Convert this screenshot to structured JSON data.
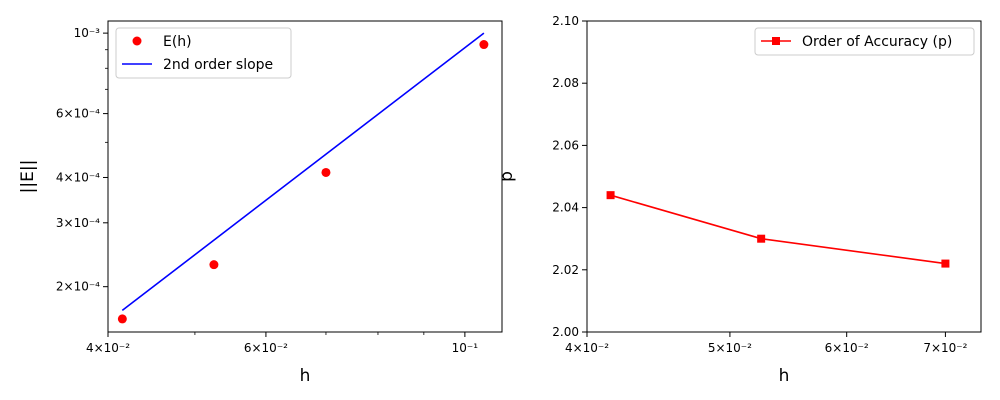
{
  "chart_data": [
    {
      "type": "scatter",
      "xscale": "log",
      "yscale": "log",
      "xlabel": "h",
      "ylabel": "||E||",
      "xlim": [
        0.04,
        0.11
      ],
      "ylim": [
        0.00015,
        0.00108
      ],
      "grid": false,
      "legend_position": "upper-left",
      "xtick_labels": [
        "4×10⁻²",
        "6×10⁻²",
        "10⁻¹"
      ],
      "xtick_values": [
        0.04,
        0.06,
        0.1
      ],
      "ytick_labels": [
        "2×10⁻⁴",
        "3×10⁻⁴",
        "4×10⁻⁴",
        "6×10⁻⁴",
        "10⁻³"
      ],
      "ytick_values": [
        0.0002,
        0.0003,
        0.0004,
        0.0006,
        0.001
      ],
      "series": [
        {
          "name": "E(h)",
          "marker": "circle",
          "color": "#ff0000",
          "line": false,
          "x": [
            0.0415,
            0.0525,
            0.07,
            0.105
          ],
          "y": [
            0.000163,
            0.00023,
            0.000413,
            0.00093
          ]
        },
        {
          "name": "2nd order slope",
          "marker": "none",
          "color": "#0000ff",
          "line": true,
          "x": [
            0.0415,
            0.105
          ],
          "y": [
            0.000172,
            0.001
          ]
        }
      ]
    },
    {
      "type": "line",
      "xscale": "log",
      "yscale": "linear",
      "xlabel": "h",
      "ylabel": "p",
      "xlim": [
        0.04,
        0.074
      ],
      "ylim": [
        2.0,
        2.1
      ],
      "grid": false,
      "legend_position": "upper-right",
      "xtick_labels": [
        "4×10⁻²",
        "5×10⁻²",
        "6×10⁻²",
        "7×10⁻²"
      ],
      "xtick_values": [
        0.04,
        0.05,
        0.06,
        0.07
      ],
      "ytick_labels": [
        "2.00",
        "2.02",
        "2.04",
        "2.06",
        "2.08",
        "2.10"
      ],
      "ytick_values": [
        2.0,
        2.02,
        2.04,
        2.06,
        2.08,
        2.1
      ],
      "series": [
        {
          "name": "Order of Accuracy (p)",
          "marker": "square",
          "color": "#ff0000",
          "line": true,
          "x": [
            0.0415,
            0.0525,
            0.07
          ],
          "y": [
            2.044,
            2.03,
            2.022
          ]
        }
      ]
    }
  ]
}
